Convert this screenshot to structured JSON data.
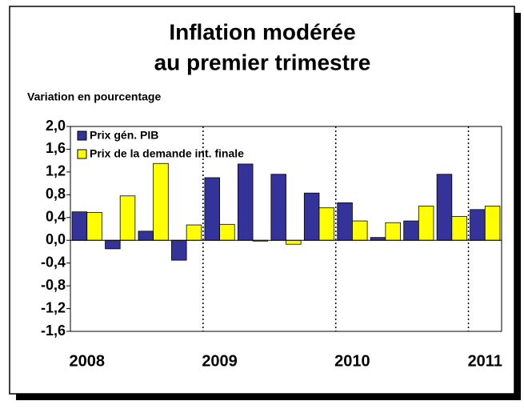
{
  "chart_data": {
    "type": "bar",
    "title": [
      "Inflation modérée",
      "au premier trimestre"
    ],
    "y_label": "Variation en pourcentage",
    "categories": [
      "2008",
      null,
      null,
      null,
      "2009",
      null,
      null,
      null,
      "2010",
      null,
      null,
      null,
      "2011"
    ],
    "series": [
      {
        "name": "Prix gén. PIB",
        "color": "#333399",
        "values": [
          0.5,
          -0.15,
          0.16,
          -0.35,
          1.1,
          1.34,
          1.16,
          0.83,
          0.66,
          0.05,
          0.34,
          1.16,
          0.54
        ]
      },
      {
        "name": "Prix de la demande int. finale",
        "color": "#ffff00",
        "values": [
          0.49,
          0.78,
          1.35,
          0.27,
          0.28,
          -0.01,
          -0.07,
          0.57,
          0.34,
          0.31,
          0.6,
          0.42,
          0.6
        ]
      }
    ],
    "ylim": [
      -1.6,
      2.0
    ],
    "yticks": [
      {
        "value": -1.6,
        "label": "-1,6"
      },
      {
        "value": -1.2,
        "label": "-1,2"
      },
      {
        "value": -0.8,
        "label": "-0,8"
      },
      {
        "value": -0.4,
        "label": "-0,4"
      },
      {
        "value": 0,
        "label": "0,0"
      },
      {
        "value": 0.4,
        "label": "0,4"
      },
      {
        "value": 0.8,
        "label": "0,8"
      },
      {
        "value": 1.2,
        "label": "1,2"
      },
      {
        "value": 1.6,
        "label": "1,6"
      },
      {
        "value": 2.0,
        "label": "2,0"
      }
    ],
    "legend": "top-left"
  }
}
